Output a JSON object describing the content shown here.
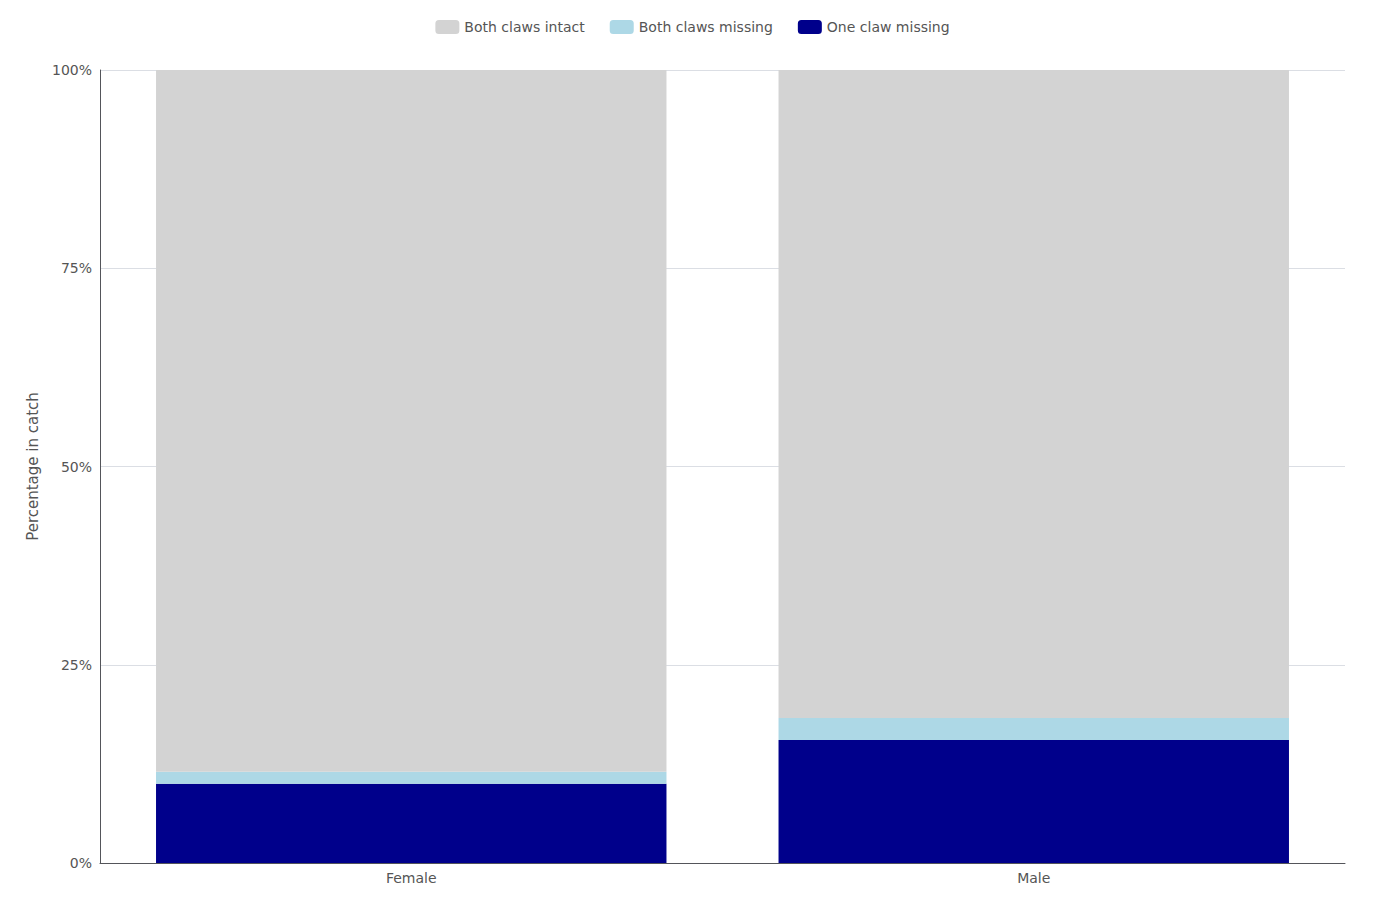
{
  "chart_data": {
    "type": "bar",
    "stacked": true,
    "categories": [
      "Female",
      "Male"
    ],
    "ylabel": "Percentage in catch",
    "series": [
      {
        "name": "One claw missing",
        "color": "#00008B",
        "values": [
          0.1,
          0.155
        ]
      },
      {
        "name": "Both claws missing",
        "color": "#ADD8E6",
        "values": [
          0.015,
          0.028
        ]
      },
      {
        "name": "Both claws intact",
        "color": "#D3D3D3",
        "values": [
          0.885,
          0.817
        ]
      }
    ],
    "ylim": [
      0,
      1.0
    ],
    "yticks": [
      {
        "value": 0,
        "label": "0%"
      },
      {
        "value": 0.25,
        "label": "25%"
      },
      {
        "value": 0.5,
        "label": "50%"
      },
      {
        "value": 0.75,
        "label": "75%"
      },
      {
        "value": 1.0,
        "label": "100%"
      }
    ],
    "grid": true,
    "legend": "top"
  }
}
